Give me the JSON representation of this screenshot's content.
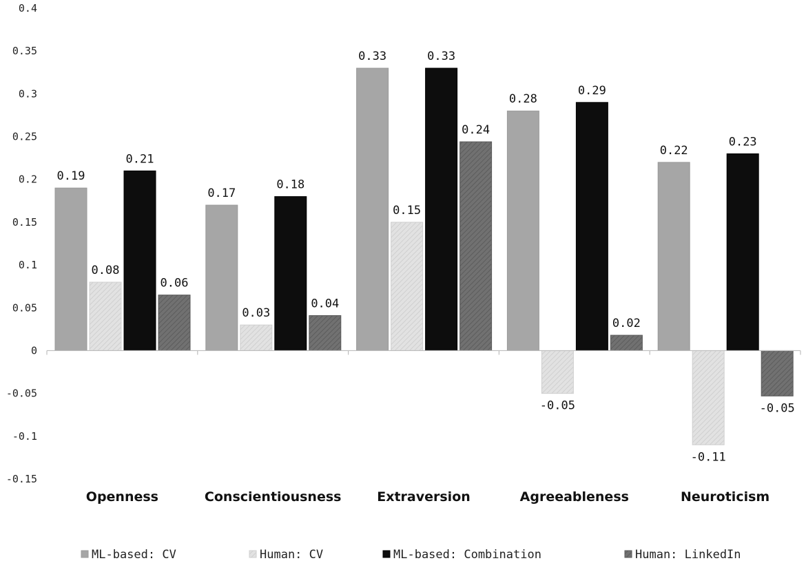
{
  "chart_data": {
    "type": "bar",
    "title": "",
    "xlabel": "",
    "ylabel": "",
    "ylim": [
      -0.15,
      0.4
    ],
    "yticks": [
      0.4,
      0.35,
      0.3,
      0.25,
      0.2,
      0.15,
      0.1,
      0.05,
      0,
      -0.05,
      -0.1,
      -0.15
    ],
    "ytick_labels": [
      "0.4",
      "0.35",
      "0.3",
      "0.25",
      "0.2",
      "0.15",
      "0.1",
      "0.05",
      "0",
      "-0.05",
      "-0.1",
      "-0.15"
    ],
    "grid": false,
    "legend_position": "bottom",
    "categories": [
      "Openness",
      "Conscientiousness",
      "Extraversion",
      "Agreeableness",
      "Neuroticism"
    ],
    "series": [
      {
        "name": "ML-based: CV",
        "color": "#a6a6a6",
        "pattern": "solid",
        "values": [
          0.19,
          0.17,
          0.33,
          0.28,
          0.22
        ],
        "labels": [
          "0.19",
          "0.17",
          "0.33",
          "0.28",
          "0.22"
        ]
      },
      {
        "name": "Human: CV",
        "color": "#dedede",
        "pattern": "hatched",
        "values": [
          0.08,
          0.03,
          0.15,
          -0.05,
          -0.11
        ],
        "labels": [
          "0.08",
          "0.03",
          "0.15",
          "-0.05",
          "-0.11"
        ]
      },
      {
        "name": "ML-based: Combination",
        "color": "#0d0d0d",
        "pattern": "solid",
        "values": [
          0.21,
          0.18,
          0.33,
          0.29,
          0.23
        ],
        "labels": [
          "0.21",
          "0.18",
          "0.33",
          "0.29",
          "0.23"
        ]
      },
      {
        "name": "Human: LinkedIn",
        "color": "#6b6b6b",
        "pattern": "hatched",
        "values": [
          0.065,
          0.041,
          0.244,
          0.018,
          -0.053
        ],
        "labels": [
          "0.06",
          "0.04",
          "0.24",
          "0.02",
          "-0.05"
        ]
      }
    ]
  }
}
